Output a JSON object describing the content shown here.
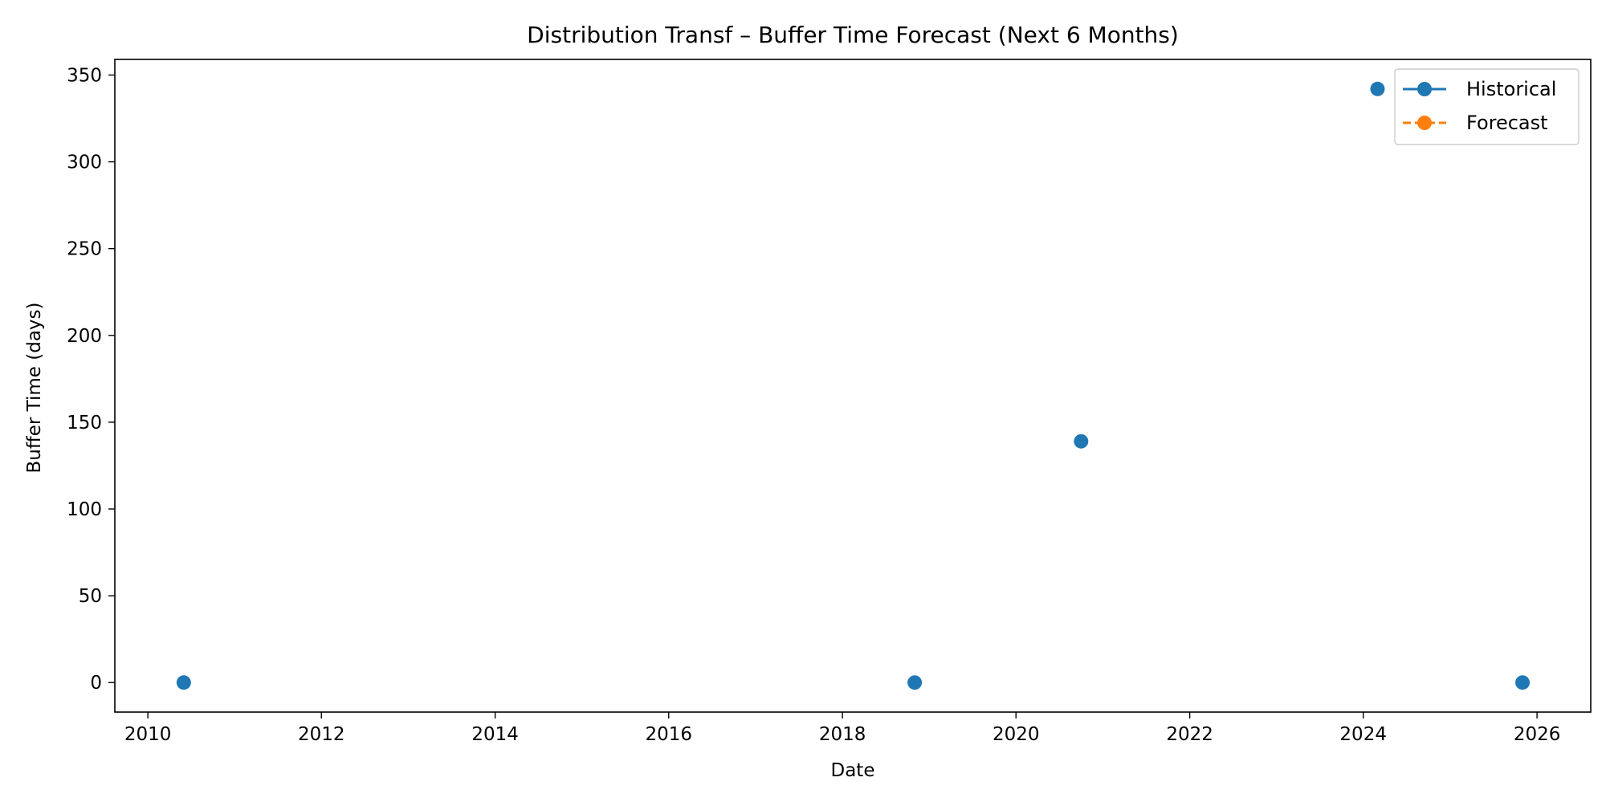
{
  "chart_data": {
    "type": "scatter",
    "title": "Distribution Transf – Buffer Time Forecast (Next 6 Months)",
    "xlabel": "Date",
    "ylabel": "Buffer Time (days)",
    "x_axis_type": "date",
    "xlim": [
      "2009-08-15",
      "2026-08-15"
    ],
    "ylim": [
      -17,
      359
    ],
    "x_ticks": [
      "2010",
      "2012",
      "2014",
      "2016",
      "2018",
      "2020",
      "2022",
      "2024",
      "2026"
    ],
    "x_tick_dates": [
      "2010-01-01",
      "2012-01-01",
      "2014-01-01",
      "2016-01-01",
      "2018-01-01",
      "2020-01-01",
      "2022-01-01",
      "2024-01-01",
      "2026-01-01"
    ],
    "y_ticks": [
      0,
      50,
      100,
      150,
      200,
      250,
      300,
      350
    ],
    "grid": false,
    "legend_position": "top-right",
    "series": [
      {
        "name": "Historical",
        "color": "#1f77b4",
        "line_style": "solid",
        "marker": "circle",
        "points": [
          {
            "x": "2010-06-01",
            "y": 0
          },
          {
            "x": "2018-11-01",
            "y": 0
          },
          {
            "x": "2020-10-01",
            "y": 139
          },
          {
            "x": "2024-03-01",
            "y": 342
          },
          {
            "x": "2025-11-01",
            "y": 0
          }
        ]
      },
      {
        "name": "Forecast",
        "color": "#ff7f0e",
        "line_style": "dashed",
        "marker": "circle",
        "points": []
      }
    ]
  }
}
